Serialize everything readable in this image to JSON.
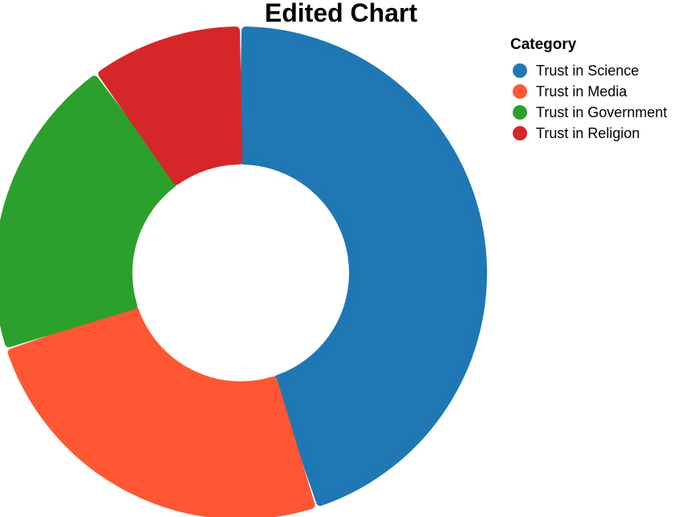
{
  "chart_data": {
    "type": "pie",
    "title": "Edited Chart",
    "donut": true,
    "legend_title": "Category",
    "legend_position": "top-right",
    "categories": [
      "Trust in Science",
      "Trust in Media",
      "Trust in Government",
      "Trust in Religion"
    ],
    "values": [
      45,
      25,
      20,
      10
    ],
    "colors": [
      "#1f77b4",
      "#ff5733",
      "#2ca02c",
      "#d62728"
    ]
  }
}
